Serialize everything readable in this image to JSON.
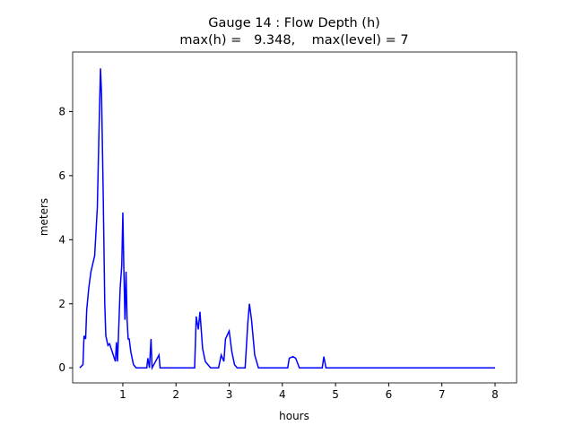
{
  "chart_data": {
    "type": "line",
    "title": "Gauge 14 : Flow Depth (h)",
    "subtitle": "max(h) =   9.348,    max(level) = 7",
    "x_label": "hours",
    "y_label": "meters",
    "x": [
      0.19,
      0.25,
      0.27,
      0.3,
      0.32,
      0.36,
      0.4,
      0.47,
      0.52,
      0.56,
      0.58,
      0.6,
      0.63,
      0.66,
      0.68,
      0.72,
      0.75,
      0.82,
      0.86,
      0.88,
      0.9,
      0.95,
      0.98,
      1.0,
      1.02,
      1.04,
      1.06,
      1.08,
      1.1,
      1.12,
      1.15,
      1.2,
      1.25,
      1.45,
      1.47,
      1.5,
      1.53,
      1.55,
      1.68,
      1.7,
      2.35,
      2.38,
      2.42,
      2.45,
      2.5,
      2.55,
      2.6,
      2.65,
      2.8,
      2.85,
      2.9,
      2.93,
      3.0,
      3.05,
      3.1,
      3.15,
      3.3,
      3.35,
      3.38,
      3.42,
      3.48,
      3.55,
      4.1,
      4.13,
      4.2,
      4.25,
      4.32,
      4.75,
      4.78,
      4.82,
      8.0
    ],
    "series": [
      {
        "name": "h",
        "color": "#0000ff",
        "values": [
          0,
          0.1,
          1.0,
          0.9,
          1.8,
          2.5,
          3.0,
          3.5,
          5.0,
          8.0,
          9.35,
          8.5,
          5.5,
          2.0,
          1.0,
          0.7,
          0.75,
          0.4,
          0.2,
          0.8,
          0.2,
          2.5,
          3.2,
          4.85,
          3.0,
          1.5,
          3.0,
          1.5,
          0.9,
          0.9,
          0.5,
          0.1,
          0,
          0,
          0.3,
          0,
          0.9,
          0,
          0.4,
          0,
          0,
          1.6,
          1.2,
          1.75,
          0.6,
          0.2,
          0.1,
          0,
          0,
          0.4,
          0.2,
          0.9,
          1.15,
          0.5,
          0.1,
          0,
          0,
          1.4,
          2.0,
          1.5,
          0.4,
          0,
          0,
          0.3,
          0.35,
          0.3,
          0,
          0,
          0.35,
          0,
          0
        ]
      }
    ],
    "xlim": [
      0.056,
      8.405
    ],
    "ylim": [
      -0.47,
      9.86
    ],
    "xticks": [
      1,
      2,
      3,
      4,
      5,
      6,
      7,
      8
    ],
    "yticks": [
      0,
      2,
      4,
      6,
      8
    ],
    "grid": false
  }
}
